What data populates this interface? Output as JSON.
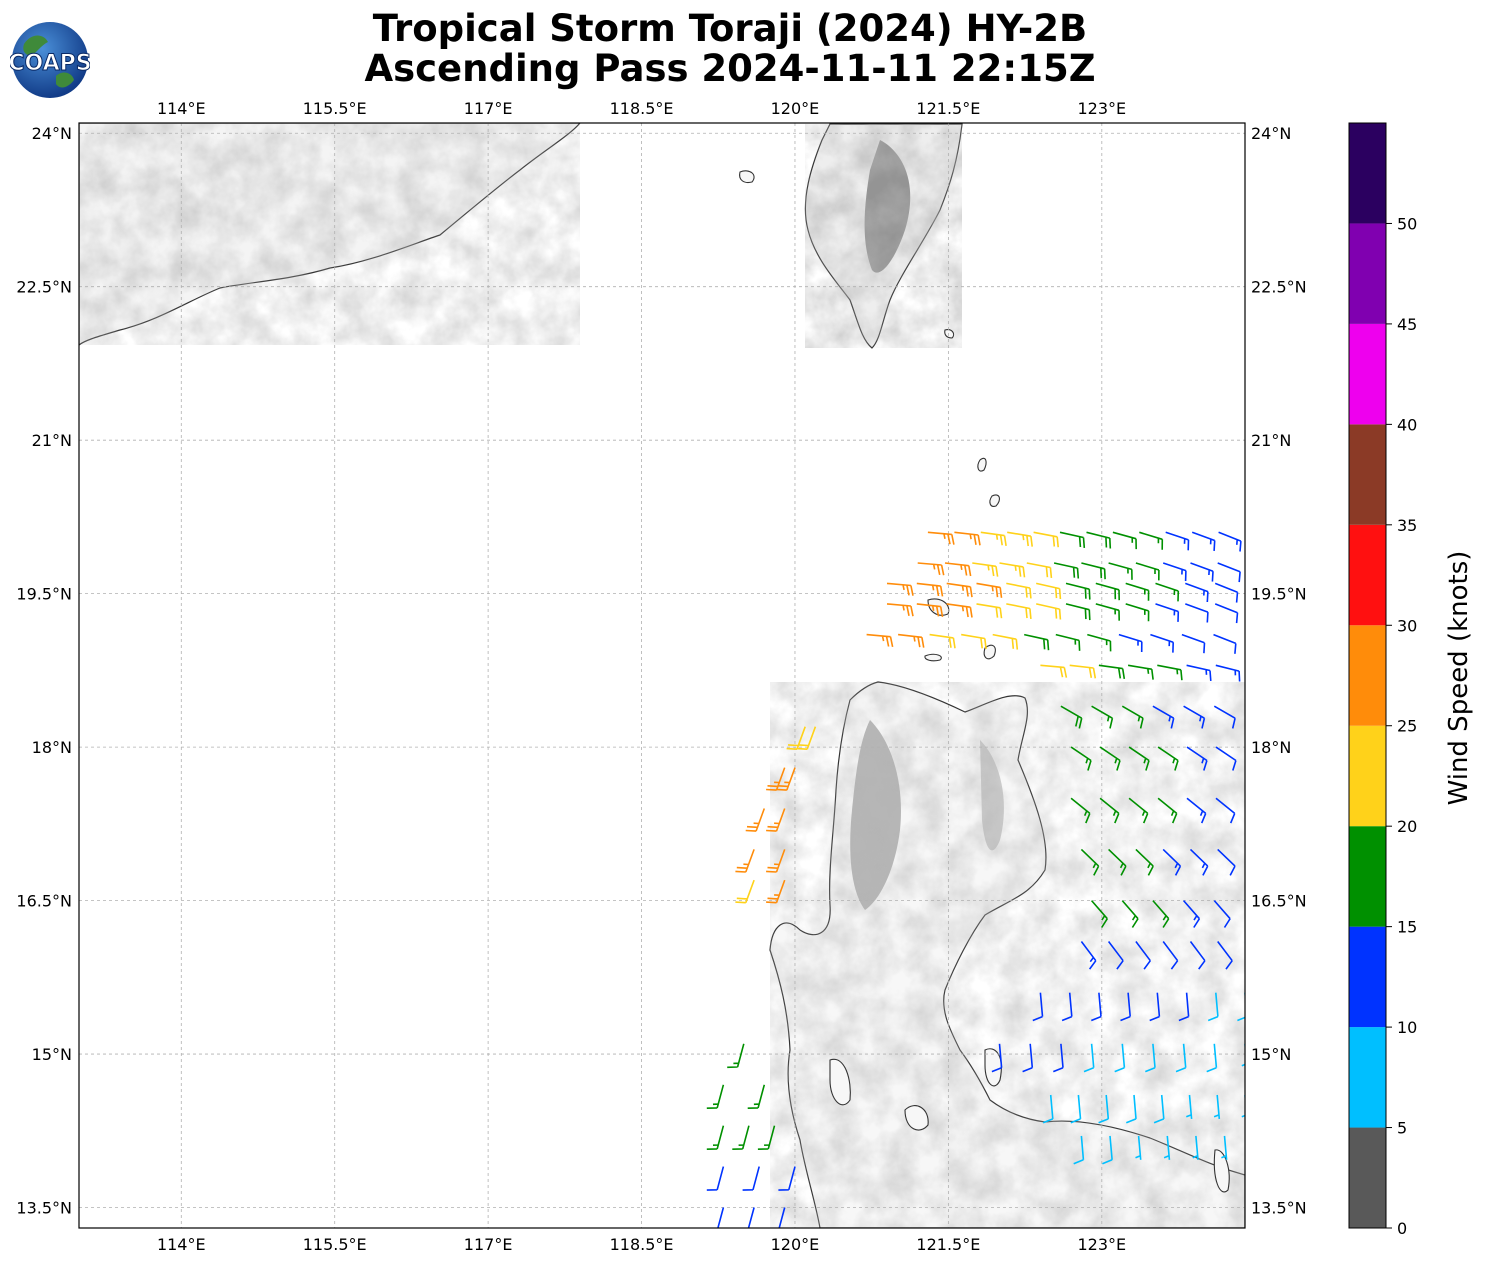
{
  "title": {
    "line1": "Tropical Storm Toraji (2024) HY-2B",
    "line2": "Ascending Pass 2024-11-11 22:15Z"
  },
  "logo": {
    "text": "COAPS",
    "icon": "globe-icon"
  },
  "map": {
    "lon_range": [
      113.0,
      124.4
    ],
    "lat_range": [
      13.3,
      24.1
    ],
    "lon_ticks": [
      "114°E",
      "115.5°E",
      "117°E",
      "118.5°E",
      "120°E",
      "121.5°E",
      "123°E"
    ],
    "lat_ticks": [
      "24°N",
      "22.5°N",
      "21°N",
      "19.5°N",
      "18°N",
      "16.5°N",
      "15°N",
      "13.5°N"
    ],
    "gridlines": true,
    "terrain_shading": "grayscale"
  },
  "colorbar": {
    "label": "Wind Speed (knots)",
    "tick_labels": [
      "0",
      "5",
      "10",
      "15",
      "20",
      "25",
      "30",
      "35",
      "40",
      "45",
      "50"
    ],
    "bands": [
      {
        "min": 0,
        "max": 5,
        "color": "#595959"
      },
      {
        "min": 5,
        "max": 10,
        "color": "#00bfff"
      },
      {
        "min": 10,
        "max": 15,
        "color": "#0033ff"
      },
      {
        "min": 15,
        "max": 20,
        "color": "#009000"
      },
      {
        "min": 20,
        "max": 25,
        "color": "#ffd21a"
      },
      {
        "min": 25,
        "max": 30,
        "color": "#ff8c0a"
      },
      {
        "min": 30,
        "max": 35,
        "color": "#ff1010"
      },
      {
        "min": 35,
        "max": 40,
        "color": "#8b3a26"
      },
      {
        "min": 40,
        "max": 45,
        "color": "#ee00ee"
      },
      {
        "min": 45,
        "max": 50,
        "color": "#8000b0"
      },
      {
        "min": 50,
        "max": 55,
        "color": "#2b0060"
      }
    ]
  },
  "wind_swaths": [
    {
      "name": "north-swath",
      "rows": [
        {
          "lat": 20.1,
          "lon_start": 121.3,
          "lon_end": 124.4,
          "speeds": [
            27,
            27,
            24,
            23,
            22,
            18,
            18,
            17,
            15,
            14,
            13,
            13,
            12
          ]
        },
        {
          "lat": 19.8,
          "lon_start": 121.2,
          "lon_end": 124.4,
          "speeds": [
            26,
            26,
            23,
            23,
            22,
            19,
            18,
            17,
            16,
            14,
            13,
            12,
            12
          ]
        },
        {
          "lat": 19.6,
          "lon_start": 120.9,
          "lon_end": 124.4,
          "speeds": [
            27,
            27,
            26,
            26,
            22,
            21,
            19,
            18,
            16,
            15,
            13,
            12,
            11
          ]
        },
        {
          "lat": 19.4,
          "lon_start": 120.9,
          "lon_end": 124.4,
          "speeds": [
            27,
            27,
            25,
            22,
            22,
            21,
            18,
            17,
            15,
            14,
            12,
            12,
            11
          ]
        },
        {
          "lat": 19.1,
          "lon_start": 120.7,
          "lon_end": 124.4,
          "speeds": [
            26,
            26,
            22,
            22,
            21,
            19,
            17,
            15,
            14,
            13,
            12,
            11,
            11
          ]
        },
        {
          "lat": 18.8,
          "lon_start": 122.4,
          "lon_end": 124.4,
          "speeds": [
            22,
            21,
            18,
            17,
            16,
            14,
            13,
            12
          ]
        }
      ]
    },
    {
      "name": "east-swath",
      "rows": [
        {
          "lat": 18.4,
          "lon_start": 122.6,
          "lon_end": 124.4,
          "speeds": [
            18,
            17,
            16,
            14,
            13,
            12,
            11
          ]
        },
        {
          "lat": 18.0,
          "lon_start": 122.7,
          "lon_end": 124.4,
          "speeds": [
            17,
            17,
            16,
            15,
            13,
            12,
            11
          ]
        },
        {
          "lat": 17.5,
          "lon_start": 122.7,
          "lon_end": 124.4,
          "speeds": [
            17,
            16,
            16,
            15,
            14,
            12,
            11
          ]
        },
        {
          "lat": 17.0,
          "lon_start": 122.8,
          "lon_end": 124.4,
          "speeds": [
            17,
            16,
            15,
            14,
            13,
            12,
            11
          ]
        },
        {
          "lat": 16.5,
          "lon_start": 122.9,
          "lon_end": 124.4,
          "speeds": [
            16,
            16,
            15,
            13,
            12,
            11
          ]
        },
        {
          "lat": 16.1,
          "lon_start": 122.8,
          "lon_end": 124.4,
          "speeds": [
            13,
            12,
            12,
            12,
            11,
            10,
            9
          ]
        },
        {
          "lat": 15.6,
          "lon_start": 122.4,
          "lon_end": 124.4,
          "speeds": [
            12,
            11,
            11,
            11,
            10,
            10,
            9,
            8
          ]
        },
        {
          "lat": 15.1,
          "lon_start": 122.0,
          "lon_end": 124.4,
          "speeds": [
            12,
            12,
            11,
            9,
            8,
            9,
            9,
            8,
            7
          ]
        },
        {
          "lat": 14.6,
          "lon_start": 122.5,
          "lon_end": 124.4,
          "speeds": [
            9,
            8,
            8,
            8,
            8,
            7,
            7,
            7
          ]
        },
        {
          "lat": 14.2,
          "lon_start": 122.8,
          "lon_end": 124.2,
          "speeds": [
            8,
            8,
            7,
            7,
            7,
            7
          ]
        }
      ]
    },
    {
      "name": "west-swath",
      "rows": [
        {
          "lat": 18.2,
          "lon_start": 120.1,
          "lon_end": 120.2,
          "speeds": [
            22,
            22
          ]
        },
        {
          "lat": 17.8,
          "lon_start": 119.9,
          "lon_end": 120.0,
          "speeds": [
            26,
            27
          ]
        },
        {
          "lat": 17.4,
          "lon_start": 119.7,
          "lon_end": 119.9,
          "speeds": [
            26,
            26
          ]
        },
        {
          "lat": 17.0,
          "lon_start": 119.6,
          "lon_end": 119.9,
          "speeds": [
            27,
            27
          ]
        },
        {
          "lat": 16.7,
          "lon_start": 119.6,
          "lon_end": 119.9,
          "speeds": [
            22,
            27
          ]
        }
      ]
    },
    {
      "name": "southwest-swath",
      "rows": [
        {
          "lat": 15.1,
          "lon_start": 119.5,
          "lon_end": 119.5,
          "speeds": [
            17
          ]
        },
        {
          "lat": 14.7,
          "lon_start": 119.3,
          "lon_end": 119.7,
          "speeds": [
            17,
            17
          ]
        },
        {
          "lat": 14.3,
          "lon_start": 119.3,
          "lon_end": 119.8,
          "speeds": [
            17,
            17,
            16
          ]
        },
        {
          "lat": 13.9,
          "lon_start": 119.3,
          "lon_end": 120.0,
          "speeds": [
            12,
            12,
            12
          ]
        },
        {
          "lat": 13.5,
          "lon_start": 119.3,
          "lon_end": 119.9,
          "speeds": [
            12,
            12,
            11
          ]
        }
      ]
    }
  ]
}
